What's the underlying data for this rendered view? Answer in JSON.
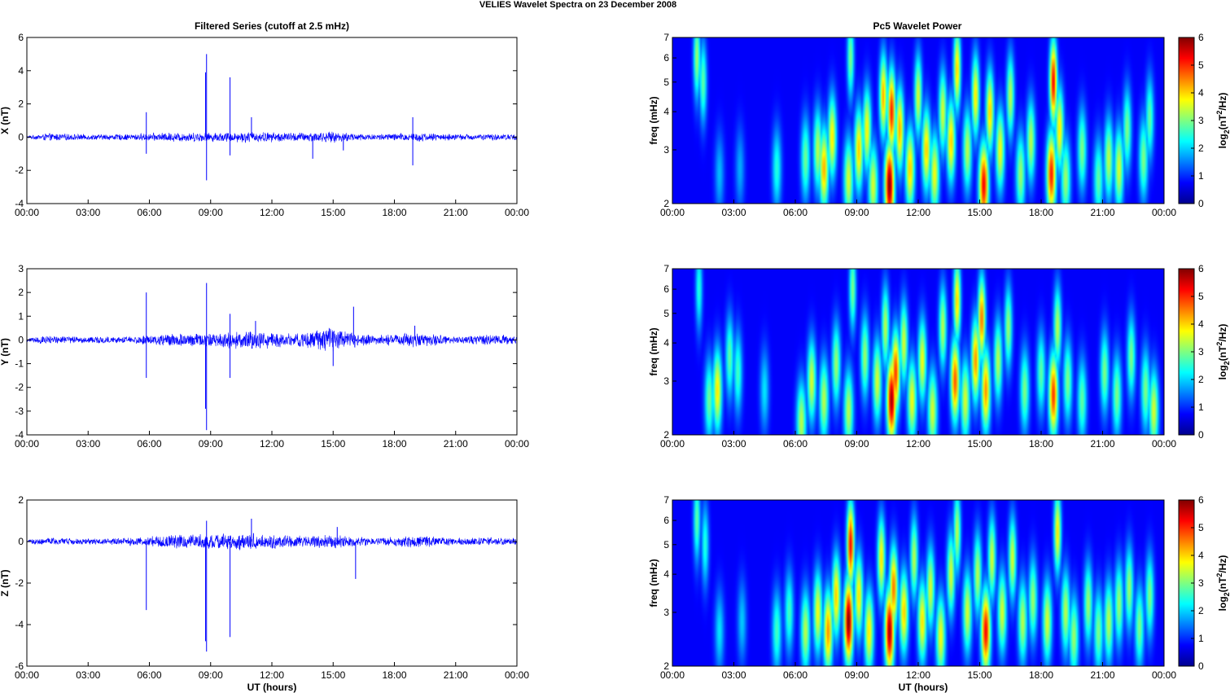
{
  "figure": {
    "title": "VELIES Wavelet Spectra on 23 December  2008",
    "left_title": "Filtered Series (cutoff at 2.5 mHz)",
    "right_title": "Pc5 Wavelet Power",
    "xlabel": "UT (hours)"
  },
  "chart_data": [
    {
      "type": "line",
      "component": "X",
      "ylabel": "X (nT)",
      "xlim": [
        0,
        24
      ],
      "ylim": [
        -4,
        6
      ],
      "x_ticks": [
        "00:00",
        "03:00",
        "06:00",
        "09:00",
        "12:00",
        "15:00",
        "18:00",
        "21:00",
        "00:00"
      ],
      "y_ticks": [
        "6",
        "4",
        "2",
        "0",
        "-2",
        "-4"
      ],
      "noise": [
        [
          0,
          0.08
        ],
        [
          1,
          0.25
        ],
        [
          3,
          0.18
        ],
        [
          5,
          0.2
        ],
        [
          7,
          0.3
        ],
        [
          9,
          0.3
        ],
        [
          11,
          0.35
        ],
        [
          13,
          0.3
        ],
        [
          15,
          0.35
        ],
        [
          17,
          0.2
        ],
        [
          19,
          0.3
        ],
        [
          21,
          0.2
        ],
        [
          24,
          0.2
        ]
      ],
      "spikes": [
        [
          5.85,
          1.5
        ],
        [
          5.85,
          -1.0
        ],
        [
          8.8,
          5.0
        ],
        [
          8.8,
          -2.6
        ],
        [
          8.75,
          3.9
        ],
        [
          9.95,
          3.6
        ],
        [
          9.95,
          -1.1
        ],
        [
          11.0,
          1.2
        ],
        [
          14.0,
          -1.3
        ],
        [
          15.5,
          -0.8
        ],
        [
          18.9,
          1.2
        ],
        [
          18.9,
          -1.7
        ]
      ],
      "line_color": "#0000ff"
    },
    {
      "type": "line",
      "component": "Y",
      "ylabel": "Y (nT)",
      "xlim": [
        0,
        24
      ],
      "ylim": [
        -4,
        3
      ],
      "x_ticks": [
        "00:00",
        "03:00",
        "06:00",
        "09:00",
        "12:00",
        "15:00",
        "18:00",
        "21:00",
        "00:00"
      ],
      "y_ticks": [
        "3",
        "2",
        "1",
        "0",
        "-1",
        "-2",
        "-3",
        "-4"
      ],
      "noise": [
        [
          0,
          0.1
        ],
        [
          1,
          0.2
        ],
        [
          3,
          0.15
        ],
        [
          5,
          0.15
        ],
        [
          7,
          0.3
        ],
        [
          9,
          0.3
        ],
        [
          11,
          0.45
        ],
        [
          13,
          0.3
        ],
        [
          15,
          0.55
        ],
        [
          17,
          0.2
        ],
        [
          19,
          0.35
        ],
        [
          21,
          0.15
        ],
        [
          22,
          0.25
        ],
        [
          24,
          0.2
        ]
      ],
      "spikes": [
        [
          5.85,
          2.0
        ],
        [
          5.85,
          -1.6
        ],
        [
          8.8,
          2.4
        ],
        [
          8.8,
          -3.8
        ],
        [
          8.75,
          -2.9
        ],
        [
          9.95,
          1.1
        ],
        [
          9.95,
          -1.6
        ],
        [
          11.2,
          0.8
        ],
        [
          15.0,
          -1.1
        ],
        [
          16.0,
          1.4
        ],
        [
          19.0,
          0.6
        ],
        [
          24.0,
          -0.9
        ]
      ],
      "line_color": "#0000ff"
    },
    {
      "type": "line",
      "component": "Z",
      "ylabel": "Z (nT)",
      "xlim": [
        0,
        24
      ],
      "ylim": [
        -6,
        2
      ],
      "x_ticks": [
        "00:00",
        "03:00",
        "06:00",
        "09:00",
        "12:00",
        "15:00",
        "18:00",
        "21:00",
        "00:00"
      ],
      "y_ticks": [
        "2",
        "0",
        "-2",
        "-4",
        "-6"
      ],
      "noise": [
        [
          0,
          0.1
        ],
        [
          1,
          0.2
        ],
        [
          3,
          0.15
        ],
        [
          5,
          0.2
        ],
        [
          7,
          0.35
        ],
        [
          9,
          0.4
        ],
        [
          11,
          0.45
        ],
        [
          13,
          0.3
        ],
        [
          15,
          0.35
        ],
        [
          17,
          0.2
        ],
        [
          19,
          0.3
        ],
        [
          21,
          0.2
        ],
        [
          24,
          0.2
        ]
      ],
      "spikes": [
        [
          5.85,
          -3.3
        ],
        [
          8.8,
          1.0
        ],
        [
          8.8,
          -5.3
        ],
        [
          8.75,
          -4.8
        ],
        [
          9.95,
          -4.6
        ],
        [
          11.0,
          1.1
        ],
        [
          16.1,
          -1.8
        ],
        [
          15.2,
          0.7
        ]
      ],
      "line_color": "#0000ff"
    },
    {
      "type": "heatmap",
      "component": "X",
      "ylabel": "freq (mHz)",
      "yscale": "log",
      "ylim": [
        2,
        7
      ],
      "xlim": [
        0,
        24
      ],
      "x_ticks": [
        "00:00",
        "03:00",
        "06:00",
        "09:00",
        "12:00",
        "15:00",
        "18:00",
        "21:00",
        "00:00"
      ],
      "y_ticks": [
        "7",
        "6",
        "5",
        "4",
        "3",
        "2"
      ],
      "colorbar": {
        "label": "log2(nT^2/Hz)",
        "range": [
          0,
          6
        ],
        "ticks": [
          "6",
          "5",
          "4",
          "3",
          "2",
          "1",
          "0"
        ]
      },
      "blobs": [
        [
          1.2,
          6,
          2.8
        ],
        [
          1.5,
          5,
          2.4
        ],
        [
          2.3,
          2.5,
          1.3
        ],
        [
          3.3,
          2.6,
          1.2
        ],
        [
          5.1,
          2.6,
          2.0
        ],
        [
          6.5,
          2.8,
          2.5
        ],
        [
          7.1,
          3.0,
          3.0
        ],
        [
          7.4,
          2.6,
          4.0
        ],
        [
          7.8,
          3.3,
          3.6
        ],
        [
          8.6,
          2.4,
          3.2
        ],
        [
          8.7,
          6,
          2.6
        ],
        [
          9.1,
          3.0,
          3.8
        ],
        [
          9.5,
          3.5,
          3.5
        ],
        [
          9.8,
          2.3,
          3.2
        ],
        [
          10.3,
          4.5,
          4.0
        ],
        [
          10.6,
          2.3,
          6.0
        ],
        [
          10.7,
          4.0,
          5.0
        ],
        [
          11.1,
          3.5,
          4.0
        ],
        [
          11.6,
          2.6,
          3.8
        ],
        [
          12.0,
          4.5,
          3.2
        ],
        [
          12.4,
          3.0,
          3.8
        ],
        [
          12.8,
          2.5,
          3.4
        ],
        [
          13.2,
          4.0,
          3.2
        ],
        [
          13.6,
          3.2,
          3.8
        ],
        [
          13.9,
          5.5,
          3.8
        ],
        [
          14.4,
          3.0,
          3.0
        ],
        [
          14.8,
          4.5,
          3.6
        ],
        [
          15.2,
          2.3,
          5.2
        ],
        [
          15.5,
          4.0,
          3.8
        ],
        [
          16.0,
          3.0,
          3.4
        ],
        [
          16.5,
          4.5,
          3.0
        ],
        [
          17.0,
          2.5,
          2.8
        ],
        [
          17.5,
          3.2,
          3.0
        ],
        [
          18.5,
          2.5,
          5.0
        ],
        [
          18.6,
          5.0,
          5.2
        ],
        [
          18.9,
          3.5,
          3.6
        ],
        [
          19.2,
          2.4,
          2.8
        ],
        [
          20.0,
          3.0,
          2.6
        ],
        [
          20.8,
          2.4,
          2.4
        ],
        [
          21.3,
          2.8,
          3.0
        ],
        [
          21.8,
          2.6,
          3.2
        ],
        [
          22.2,
          3.5,
          2.6
        ],
        [
          23.0,
          2.8,
          2.6
        ],
        [
          23.3,
          3.8,
          2.4
        ]
      ]
    },
    {
      "type": "heatmap",
      "component": "Y",
      "ylabel": "freq (mHz)",
      "yscale": "log",
      "ylim": [
        2,
        7
      ],
      "xlim": [
        0,
        24
      ],
      "x_ticks": [
        "00:00",
        "03:00",
        "06:00",
        "09:00",
        "12:00",
        "15:00",
        "18:00",
        "21:00",
        "00:00"
      ],
      "y_ticks": [
        "7",
        "6",
        "5",
        "4",
        "3",
        "2"
      ],
      "colorbar": {
        "label": "log2(nT^2/Hz)",
        "range": [
          0,
          6
        ],
        "ticks": [
          "6",
          "5",
          "4",
          "3",
          "2",
          "1",
          "0"
        ]
      },
      "blobs": [
        [
          1.3,
          6,
          2.0
        ],
        [
          1.8,
          2.6,
          2.5
        ],
        [
          2.2,
          2.8,
          3.6
        ],
        [
          2.8,
          3.6,
          2.4
        ],
        [
          3.2,
          3.2,
          2.2
        ],
        [
          4.5,
          2.8,
          1.6
        ],
        [
          6.3,
          2.2,
          3.0
        ],
        [
          6.8,
          3.0,
          3.2
        ],
        [
          7.4,
          2.6,
          3.0
        ],
        [
          8.0,
          3.4,
          2.8
        ],
        [
          8.6,
          2.4,
          3.0
        ],
        [
          8.8,
          6,
          2.6
        ],
        [
          9.4,
          3.6,
          2.8
        ],
        [
          10.0,
          3.0,
          3.2
        ],
        [
          10.4,
          4.5,
          3.0
        ],
        [
          10.7,
          2.6,
          5.8
        ],
        [
          10.9,
          3.2,
          4.8
        ],
        [
          11.3,
          4.0,
          3.2
        ],
        [
          11.7,
          2.6,
          3.4
        ],
        [
          12.2,
          3.5,
          3.4
        ],
        [
          12.7,
          2.4,
          3.2
        ],
        [
          13.2,
          4.5,
          3.0
        ],
        [
          13.8,
          3.0,
          4.6
        ],
        [
          13.9,
          5.5,
          3.8
        ],
        [
          14.3,
          2.6,
          3.2
        ],
        [
          14.8,
          3.5,
          4.2
        ],
        [
          15.1,
          4.8,
          4.4
        ],
        [
          15.3,
          2.8,
          4.2
        ],
        [
          15.9,
          3.5,
          3.0
        ],
        [
          16.4,
          4.5,
          2.8
        ],
        [
          17.2,
          2.8,
          2.6
        ],
        [
          18.0,
          3.2,
          2.4
        ],
        [
          18.6,
          2.7,
          4.8
        ],
        [
          18.8,
          4.5,
          3.0
        ],
        [
          19.3,
          3.0,
          2.6
        ],
        [
          20.0,
          2.6,
          2.4
        ],
        [
          21.1,
          3.2,
          2.6
        ],
        [
          21.7,
          2.7,
          2.6
        ],
        [
          22.4,
          3.6,
          2.6
        ],
        [
          23.1,
          2.8,
          2.6
        ],
        [
          23.5,
          2.4,
          3.2
        ]
      ]
    },
    {
      "type": "heatmap",
      "component": "Z",
      "ylabel": "freq (mHz)",
      "yscale": "log",
      "ylim": [
        2,
        7
      ],
      "xlim": [
        0,
        24
      ],
      "x_ticks": [
        "00:00",
        "03:00",
        "06:00",
        "09:00",
        "12:00",
        "15:00",
        "18:00",
        "21:00",
        "00:00"
      ],
      "y_ticks": [
        "7",
        "6",
        "5",
        "4",
        "3",
        "2"
      ],
      "colorbar": {
        "label": "log2(nT^2/Hz)",
        "range": [
          0,
          6
        ],
        "ticks": [
          "6",
          "5",
          "4",
          "3",
          "2",
          "1",
          "0"
        ]
      },
      "blobs": [
        [
          1.2,
          6,
          2.4
        ],
        [
          1.6,
          5,
          2.0
        ],
        [
          2.3,
          2.6,
          1.6
        ],
        [
          3.4,
          2.8,
          1.4
        ],
        [
          5.1,
          2.6,
          2.2
        ],
        [
          5.7,
          3.0,
          2.2
        ],
        [
          6.5,
          2.6,
          3.0
        ],
        [
          7.1,
          3.0,
          3.4
        ],
        [
          7.6,
          2.6,
          4.2
        ],
        [
          8.0,
          3.4,
          3.8
        ],
        [
          8.6,
          2.8,
          6.0
        ],
        [
          8.7,
          5.0,
          5.2
        ],
        [
          9.1,
          3.4,
          3.6
        ],
        [
          9.6,
          2.6,
          3.6
        ],
        [
          10.2,
          4.5,
          3.6
        ],
        [
          10.6,
          2.6,
          5.8
        ],
        [
          10.8,
          3.6,
          4.4
        ],
        [
          11.3,
          3.0,
          3.8
        ],
        [
          11.8,
          4.5,
          3.0
        ],
        [
          12.2,
          2.8,
          3.6
        ],
        [
          12.6,
          3.6,
          3.2
        ],
        [
          13.1,
          2.5,
          3.4
        ],
        [
          13.6,
          4.0,
          3.2
        ],
        [
          13.9,
          5.5,
          3.0
        ],
        [
          14.4,
          3.0,
          3.2
        ],
        [
          14.9,
          4.0,
          3.0
        ],
        [
          15.3,
          2.6,
          5.2
        ],
        [
          15.6,
          4.5,
          3.2
        ],
        [
          16.1,
          3.0,
          3.2
        ],
        [
          16.6,
          4.5,
          3.2
        ],
        [
          17.1,
          2.8,
          3.0
        ],
        [
          17.6,
          3.3,
          2.8
        ],
        [
          18.3,
          2.8,
          3.2
        ],
        [
          18.8,
          5.5,
          3.6
        ],
        [
          19.2,
          3.0,
          3.0
        ],
        [
          19.6,
          2.5,
          2.8
        ],
        [
          20.3,
          3.2,
          2.8
        ],
        [
          20.8,
          2.6,
          2.6
        ],
        [
          21.3,
          2.8,
          3.0
        ],
        [
          21.8,
          3.2,
          2.8
        ],
        [
          22.3,
          3.6,
          2.8
        ],
        [
          22.8,
          2.7,
          2.6
        ],
        [
          23.3,
          3.4,
          2.6
        ]
      ]
    }
  ]
}
